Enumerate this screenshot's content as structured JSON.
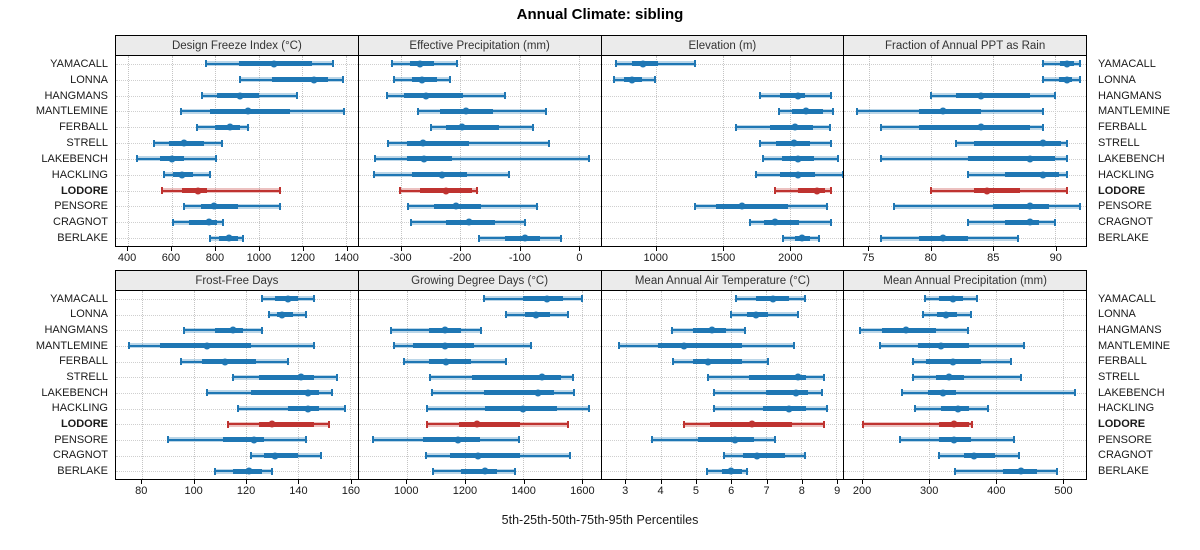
{
  "title": "Annual Climate: sibling",
  "caption": "5th-25th-50th-75th-95th Percentiles",
  "colors": {
    "series": "#1f77b4",
    "highlight": "#bf3330",
    "strip_bg": "#ebebeb",
    "grid": "#c9c9c9",
    "panel_border": "#000000"
  },
  "chart_data": {
    "type": "dot-whisker-percentiles",
    "layout": "2 rows x 4 columns",
    "grid": true,
    "percentiles": [
      "5th",
      "25th",
      "50th",
      "75th",
      "95th"
    ],
    "sites": [
      "YAMACALL",
      "LONNA",
      "HANGMANS",
      "MANTLEMINE",
      "FERBALL",
      "STRELL",
      "LAKEBENCH",
      "HACKLING",
      "LODORE",
      "PENSORE",
      "CRAGNOT",
      "BERLAKE"
    ],
    "highlight_site": "LODORE",
    "panels": [
      {
        "title": "Design Freeze Index (°C)",
        "domain": [
          345,
          1455
        ],
        "ticks": [
          400,
          600,
          800,
          1000,
          1200,
          1400
        ],
        "values": [
          [
            760,
            910,
            1070,
            1245,
            1340
          ],
          [
            915,
            1060,
            1255,
            1320,
            1385
          ],
          [
            740,
            810,
            915,
            1000,
            1175
          ],
          [
            645,
            775,
            950,
            1145,
            1390
          ],
          [
            715,
            800,
            870,
            915,
            950
          ],
          [
            520,
            590,
            655,
            750,
            830
          ],
          [
            440,
            545,
            600,
            655,
            805
          ],
          [
            565,
            605,
            650,
            700,
            775
          ],
          [
            555,
            650,
            720,
            765,
            1100
          ],
          [
            655,
            735,
            795,
            905,
            1100
          ],
          [
            605,
            680,
            770,
            810,
            835
          ],
          [
            775,
            820,
            865,
            905,
            930
          ]
        ]
      },
      {
        "title": "Effective Precipitation (mm)",
        "domain": [
          -372,
          37
        ],
        "ticks": [
          -300,
          -200,
          -100,
          0
        ],
        "values": [
          [
            -315,
            -285,
            -268,
            -245,
            -205
          ],
          [
            -312,
            -282,
            -265,
            -240,
            -218
          ],
          [
            -325,
            -295,
            -258,
            -195,
            -125
          ],
          [
            -272,
            -235,
            -190,
            -145,
            -55
          ],
          [
            -250,
            -225,
            -197,
            -135,
            -77
          ],
          [
            -322,
            -290,
            -263,
            -185,
            -50
          ],
          [
            -345,
            -290,
            -262,
            -215,
            18
          ],
          [
            -347,
            -282,
            -232,
            -188,
            -118
          ],
          [
            -303,
            -268,
            -225,
            -180,
            -172
          ],
          [
            -288,
            -245,
            -208,
            -165,
            -70
          ],
          [
            -283,
            -225,
            -185,
            -142,
            -90
          ],
          [
            -168,
            -125,
            -90,
            -65,
            -30
          ]
        ]
      },
      {
        "title": "Elevation (m)",
        "domain": [
          590,
          2400
        ],
        "ticks": [
          1000,
          1500,
          2000
        ],
        "values": [
          [
            700,
            820,
            900,
            1010,
            1290
          ],
          [
            680,
            760,
            820,
            890,
            990
          ],
          [
            1780,
            1930,
            2060,
            2110,
            2310
          ],
          [
            1920,
            2020,
            2120,
            2250,
            2320
          ],
          [
            1600,
            1850,
            2040,
            2170,
            2300
          ],
          [
            1780,
            1900,
            2030,
            2150,
            2310
          ],
          [
            1800,
            1940,
            2060,
            2180,
            2360
          ],
          [
            1750,
            1930,
            2060,
            2190,
            2395
          ],
          [
            1890,
            2060,
            2200,
            2260,
            2310
          ],
          [
            1290,
            1450,
            1640,
            1990,
            2280
          ],
          [
            1700,
            1810,
            1890,
            2070,
            2310
          ],
          [
            1950,
            2040,
            2090,
            2150,
            2220
          ]
        ]
      },
      {
        "title": "Fraction of Annual PPT as Rain",
        "domain": [
          73,
          92.5
        ],
        "ticks": [
          75,
          80,
          85,
          90
        ],
        "values": [
          [
            89,
            90.4,
            91,
            91.5,
            92
          ],
          [
            89,
            90.3,
            91,
            91.4,
            92
          ],
          [
            80,
            82,
            84,
            88,
            90
          ],
          [
            74,
            79,
            81,
            84,
            89
          ],
          [
            76,
            79,
            84,
            88,
            89
          ],
          [
            82,
            83.5,
            89,
            90.5,
            91
          ],
          [
            76,
            83,
            88,
            90,
            91
          ],
          [
            83,
            86,
            89,
            90.3,
            91
          ],
          [
            80,
            83.5,
            84.5,
            87.2,
            91
          ],
          [
            77,
            85,
            88,
            89.5,
            92
          ],
          [
            83,
            86,
            88,
            88.7,
            90
          ],
          [
            76,
            79,
            81,
            83,
            87
          ]
        ]
      },
      {
        "title": "Frost-Free Days",
        "domain": [
          70,
          163
        ],
        "ticks": [
          80,
          100,
          120,
          140,
          160
        ],
        "values": [
          [
            126,
            131,
            136,
            140,
            146
          ],
          [
            129,
            132,
            134,
            138,
            143
          ],
          [
            96,
            108,
            115,
            119,
            126
          ],
          [
            75,
            87,
            105,
            122,
            146
          ],
          [
            95,
            103,
            112,
            124,
            136
          ],
          [
            115,
            125,
            141,
            146,
            155
          ],
          [
            105,
            122,
            144,
            148,
            153
          ],
          [
            117,
            136,
            144,
            148,
            158
          ],
          [
            113,
            125,
            130,
            146,
            152
          ],
          [
            90,
            111,
            123,
            127,
            143
          ],
          [
            122,
            127,
            131,
            140,
            149
          ],
          [
            108,
            115,
            121,
            126,
            130
          ]
        ]
      },
      {
        "title": "Growing Degree Days (°C)",
        "domain": [
          835,
          1665
        ],
        "ticks": [
          1000,
          1200,
          1400,
          1600
        ],
        "values": [
          [
            1265,
            1400,
            1480,
            1535,
            1600
          ],
          [
            1340,
            1405,
            1445,
            1490,
            1555
          ],
          [
            945,
            1075,
            1130,
            1185,
            1255
          ],
          [
            955,
            1020,
            1130,
            1230,
            1425
          ],
          [
            990,
            1075,
            1135,
            1220,
            1340
          ],
          [
            1080,
            1225,
            1465,
            1530,
            1570
          ],
          [
            1085,
            1265,
            1450,
            1505,
            1575
          ],
          [
            1070,
            1270,
            1400,
            1515,
            1625
          ],
          [
            1070,
            1180,
            1240,
            1390,
            1555
          ],
          [
            885,
            1055,
            1175,
            1250,
            1385
          ],
          [
            1065,
            1150,
            1245,
            1390,
            1560
          ],
          [
            1090,
            1185,
            1270,
            1310,
            1370
          ]
        ]
      },
      {
        "title": "Mean Annual Air Temperature (°C)",
        "domain": [
          2.3,
          9.2
        ],
        "ticks": [
          3,
          4,
          5,
          6,
          7,
          8,
          9
        ],
        "values": [
          [
            6.15,
            6.7,
            7.2,
            7.65,
            8.1
          ],
          [
            6.0,
            6.45,
            6.7,
            7.05,
            7.9
          ],
          [
            4.3,
            4.9,
            5.45,
            5.85,
            6.4
          ],
          [
            2.8,
            3.9,
            4.65,
            6.3,
            7.8
          ],
          [
            4.35,
            4.9,
            5.35,
            6.3,
            7.05
          ],
          [
            5.35,
            6.5,
            7.9,
            8.15,
            8.65
          ],
          [
            5.5,
            7.0,
            7.85,
            8.2,
            8.6
          ],
          [
            5.5,
            6.9,
            7.65,
            8.15,
            8.75
          ],
          [
            4.65,
            5.4,
            6.6,
            7.75,
            8.65
          ],
          [
            3.75,
            5.05,
            6.1,
            6.65,
            7.25
          ],
          [
            5.8,
            6.35,
            6.75,
            7.55,
            8.1
          ],
          [
            5.3,
            5.75,
            6.0,
            6.3,
            6.45
          ]
        ]
      },
      {
        "title": "Mean Annual Precipitation (mm)",
        "domain": [
          172,
          535
        ],
        "ticks": [
          200,
          300,
          400,
          500
        ],
        "values": [
          [
            293,
            315,
            335,
            350,
            372
          ],
          [
            290,
            312,
            325,
            342,
            363
          ],
          [
            196,
            228,
            265,
            310,
            358
          ],
          [
            225,
            283,
            318,
            360,
            442
          ],
          [
            275,
            295,
            335,
            378,
            422
          ],
          [
            275,
            310,
            330,
            352,
            437
          ],
          [
            258,
            298,
            320,
            340,
            518
          ],
          [
            278,
            318,
            343,
            360,
            388
          ],
          [
            200,
            315,
            337,
            360,
            364
          ],
          [
            255,
            315,
            337,
            362,
            427
          ],
          [
            315,
            352,
            367,
            398,
            434
          ],
          [
            338,
            410,
            437,
            462,
            491
          ]
        ]
      }
    ]
  }
}
